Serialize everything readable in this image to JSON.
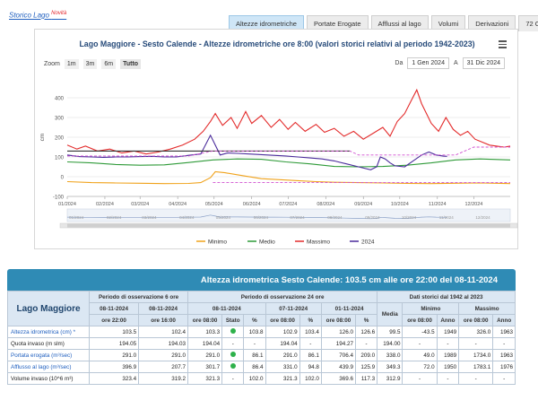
{
  "top": {
    "storico_label": "Storico Lago",
    "novita": "Novità"
  },
  "tabs": [
    {
      "label": "Altezze idrometriche",
      "active": true
    },
    {
      "label": "Portate Erogate",
      "active": false
    },
    {
      "label": "Afflussi al lago",
      "active": false
    },
    {
      "label": "Volumi",
      "active": false
    },
    {
      "label": "Derivazioni",
      "active": false
    },
    {
      "label": "72 Ore",
      "active": false
    }
  ],
  "chart": {
    "title": "Lago Maggiore - Sesto Calende - Altezze idrometriche ore 8:00 (valori storici relativi al periodo 1942-2023)",
    "zoom_label": "Zoom",
    "zoom_buttons": [
      "1m",
      "3m",
      "6m",
      "Tutto"
    ],
    "zoom_selected": "Tutto",
    "range_from_label": "Da",
    "range_from": "1 Gen 2024",
    "range_to_label": "A",
    "range_to": "31 Dic 2024",
    "yaxis_unit": "cm"
  },
  "chart_data": {
    "type": "line",
    "xlim": [
      "2024-01-01",
      "2024-12-31"
    ],
    "ylim": [
      -100,
      500
    ],
    "yticks": [
      -100,
      0,
      100,
      200,
      300,
      400
    ],
    "xticks": [
      "01/2024",
      "02/2024",
      "03/2024",
      "04/2024",
      "05/2024",
      "06/2024",
      "07/2024",
      "08/2024",
      "09/2024",
      "10/2024",
      "11/2024",
      "12/2024"
    ],
    "navigator_ticks": [
      "01/2024",
      "02/2024",
      "03/2024",
      "04/2024",
      "05/2024",
      "06/2024",
      "07/2024",
      "08/2024",
      "09/2024",
      "10/2024",
      "11/2024",
      "12/2024"
    ],
    "grid": true,
    "legend_position": "bottom",
    "colors": {
      "minimo": "#f0a21a",
      "medio": "#2e9a38",
      "massimo": "#e32b2b",
      "year2024": "#4a2b9b",
      "limit_dark": "#333333",
      "limit_dashed": "#d04fd0"
    },
    "series": [
      {
        "name": "Minimo",
        "color": "#f0a21a",
        "points": [
          [
            0,
            -25
          ],
          [
            20,
            -30
          ],
          [
            40,
            -32
          ],
          [
            60,
            -33
          ],
          [
            80,
            -35
          ],
          [
            100,
            -34
          ],
          [
            110,
            -30
          ],
          [
            118,
            -5
          ],
          [
            122,
            25
          ],
          [
            130,
            20
          ],
          [
            145,
            5
          ],
          [
            160,
            -10
          ],
          [
            175,
            -15
          ],
          [
            190,
            -20
          ],
          [
            205,
            -25
          ],
          [
            220,
            -28
          ],
          [
            240,
            -30
          ],
          [
            260,
            -32
          ],
          [
            280,
            -34
          ],
          [
            300,
            -35
          ],
          [
            320,
            -33
          ],
          [
            340,
            -32
          ],
          [
            365,
            -35
          ]
        ]
      },
      {
        "name": "Medio",
        "color": "#2e9a38",
        "points": [
          [
            0,
            75
          ],
          [
            20,
            70
          ],
          [
            40,
            62
          ],
          [
            60,
            58
          ],
          [
            80,
            60
          ],
          [
            100,
            72
          ],
          [
            120,
            85
          ],
          [
            140,
            90
          ],
          [
            160,
            88
          ],
          [
            180,
            75
          ],
          [
            200,
            65
          ],
          [
            220,
            52
          ],
          [
            240,
            50
          ],
          [
            260,
            52
          ],
          [
            280,
            58
          ],
          [
            300,
            70
          ],
          [
            320,
            85
          ],
          [
            340,
            90
          ],
          [
            365,
            85
          ]
        ]
      },
      {
        "name": "Massimo",
        "color": "#e32b2b",
        "points": [
          [
            0,
            160
          ],
          [
            8,
            140
          ],
          [
            15,
            155
          ],
          [
            25,
            130
          ],
          [
            35,
            140
          ],
          [
            45,
            120
          ],
          [
            55,
            130
          ],
          [
            65,
            115
          ],
          [
            75,
            125
          ],
          [
            85,
            140
          ],
          [
            95,
            160
          ],
          [
            105,
            190
          ],
          [
            112,
            230
          ],
          [
            118,
            280
          ],
          [
            122,
            320
          ],
          [
            128,
            260
          ],
          [
            135,
            300
          ],
          [
            140,
            245
          ],
          [
            147,
            330
          ],
          [
            152,
            270
          ],
          [
            160,
            310
          ],
          [
            168,
            250
          ],
          [
            175,
            290
          ],
          [
            182,
            240
          ],
          [
            188,
            275
          ],
          [
            196,
            230
          ],
          [
            205,
            265
          ],
          [
            212,
            225
          ],
          [
            220,
            245
          ],
          [
            228,
            205
          ],
          [
            236,
            230
          ],
          [
            244,
            190
          ],
          [
            252,
            220
          ],
          [
            260,
            250
          ],
          [
            266,
            205
          ],
          [
            272,
            280
          ],
          [
            278,
            320
          ],
          [
            283,
            380
          ],
          [
            288,
            440
          ],
          [
            292,
            370
          ],
          [
            296,
            320
          ],
          [
            300,
            270
          ],
          [
            306,
            230
          ],
          [
            312,
            300
          ],
          [
            318,
            240
          ],
          [
            324,
            210
          ],
          [
            330,
            230
          ],
          [
            336,
            190
          ],
          [
            342,
            175
          ],
          [
            348,
            160
          ],
          [
            354,
            155
          ],
          [
            360,
            150
          ],
          [
            365,
            155
          ]
        ]
      },
      {
        "name": "2024",
        "color": "#4a2b9b",
        "points": [
          [
            0,
            110
          ],
          [
            10,
            102
          ],
          [
            20,
            100
          ],
          [
            30,
            98
          ],
          [
            40,
            100
          ],
          [
            50,
            100
          ],
          [
            60,
            102
          ],
          [
            70,
            103
          ],
          [
            80,
            100
          ],
          [
            90,
            100
          ],
          [
            100,
            108
          ],
          [
            110,
            115
          ],
          [
            118,
            210
          ],
          [
            122,
            160
          ],
          [
            126,
            110
          ],
          [
            132,
            120
          ],
          [
            140,
            118
          ],
          [
            150,
            115
          ],
          [
            160,
            112
          ],
          [
            170,
            108
          ],
          [
            180,
            105
          ],
          [
            190,
            100
          ],
          [
            200,
            95
          ],
          [
            210,
            90
          ],
          [
            220,
            80
          ],
          [
            230,
            65
          ],
          [
            240,
            50
          ],
          [
            250,
            35
          ],
          [
            255,
            50
          ],
          [
            258,
            100
          ],
          [
            262,
            90
          ],
          [
            266,
            70
          ],
          [
            270,
            55
          ],
          [
            278,
            50
          ],
          [
            285,
            80
          ],
          [
            292,
            110
          ],
          [
            298,
            125
          ],
          [
            304,
            110
          ],
          [
            310,
            104
          ],
          [
            313,
            103
          ]
        ]
      },
      {
        "name": "limit-solid",
        "color": "#333333",
        "legend": false,
        "points": [
          [
            0,
            130
          ],
          [
            100,
            130
          ],
          [
            110,
            130
          ],
          [
            233,
            130
          ]
        ]
      },
      {
        "name": "limit-dashed",
        "color": "#d04fd0",
        "legend": false,
        "dashed": true,
        "points": [
          [
            0,
            105
          ],
          [
            100,
            105
          ],
          [
            120,
            130
          ],
          [
            233,
            130
          ],
          [
            240,
            110
          ],
          [
            320,
            110
          ],
          [
            335,
            150
          ],
          [
            365,
            150
          ]
        ]
      },
      {
        "name": "min-dashed",
        "color": "#d04fd0",
        "legend": false,
        "dashed": true,
        "points": [
          [
            120,
            -30
          ],
          [
            365,
            -30
          ]
        ]
      }
    ],
    "legend": [
      "Minimo",
      "Medio",
      "Massimo",
      "2024"
    ]
  },
  "table": {
    "header": "Altezza idrometrica Sesto Calende: 103.5 cm alle ore 22:00 del 08-11-2024",
    "lake": "Lago Maggiore",
    "group_headers": {
      "p6": "Periodo di osservazione 6 ore",
      "p24": "Periodo di osservazione 24 ore",
      "hist": "Dati storici dal 1942 al 2023"
    },
    "date_headers": {
      "d1": "08-11-2024",
      "d2": "08-11-2024",
      "d3": "08-11-2024",
      "d4": "07-11-2024",
      "d5": "01-11-2024",
      "media": "Media",
      "minimo": "Minimo",
      "massimo": "Massimo"
    },
    "sub_headers": {
      "ore2200": "ore 22:00",
      "ore1600": "ore 16:00",
      "ore0800a": "ore 08:00",
      "stato": "Stato",
      "pct_a": "%",
      "ore0800b": "ore 08:00",
      "pct_b": "%",
      "ore0800c": "ore 08:00",
      "pct_c": "%",
      "ore0800d": "ore 08:00",
      "anno1": "Anno",
      "ore0800e": "ore 08:00",
      "anno2": "Anno"
    },
    "rows": [
      {
        "label": "Altezza idrometrica (cm) *",
        "link": true,
        "cells": [
          "103.5",
          "102.4",
          "103.3",
          "dot",
          "103.8",
          "102.9",
          "103.4",
          "126.0",
          "126.6",
          "99.5",
          "-43.5",
          "1949",
          "326.0",
          "1963"
        ]
      },
      {
        "label": "Quota invaso (m slm)",
        "link": false,
        "cells": [
          "194.05",
          "194.03",
          "194.04",
          "-",
          "-",
          "194.04",
          "-",
          "194.27",
          "-",
          "194.00",
          "-",
          "-",
          "-",
          "-"
        ]
      },
      {
        "label": "Portata erogata (m³/sec)",
        "link": true,
        "cells": [
          "291.0",
          "291.0",
          "291.0",
          "dot",
          "86.1",
          "291.0",
          "86.1",
          "706.4",
          "209.0",
          "338.0",
          "49.0",
          "1989",
          "1734.0",
          "1963"
        ]
      },
      {
        "label": "Afflusso al lago (m³/sec)",
        "link": true,
        "cells": [
          "396.9",
          "207.7",
          "301.7",
          "dot",
          "86.4",
          "331.0",
          "94.8",
          "439.9",
          "125.9",
          "349.3",
          "72.0",
          "1950",
          "1783.1",
          "1976"
        ]
      },
      {
        "label": "Volume invaso (10^6 m³)",
        "link": false,
        "cells": [
          "323.4",
          "319.2",
          "321.3",
          "-",
          "102.0",
          "321.3",
          "102.0",
          "369.6",
          "117.3",
          "312.9",
          "-",
          "-",
          "-",
          "-"
        ]
      }
    ]
  }
}
